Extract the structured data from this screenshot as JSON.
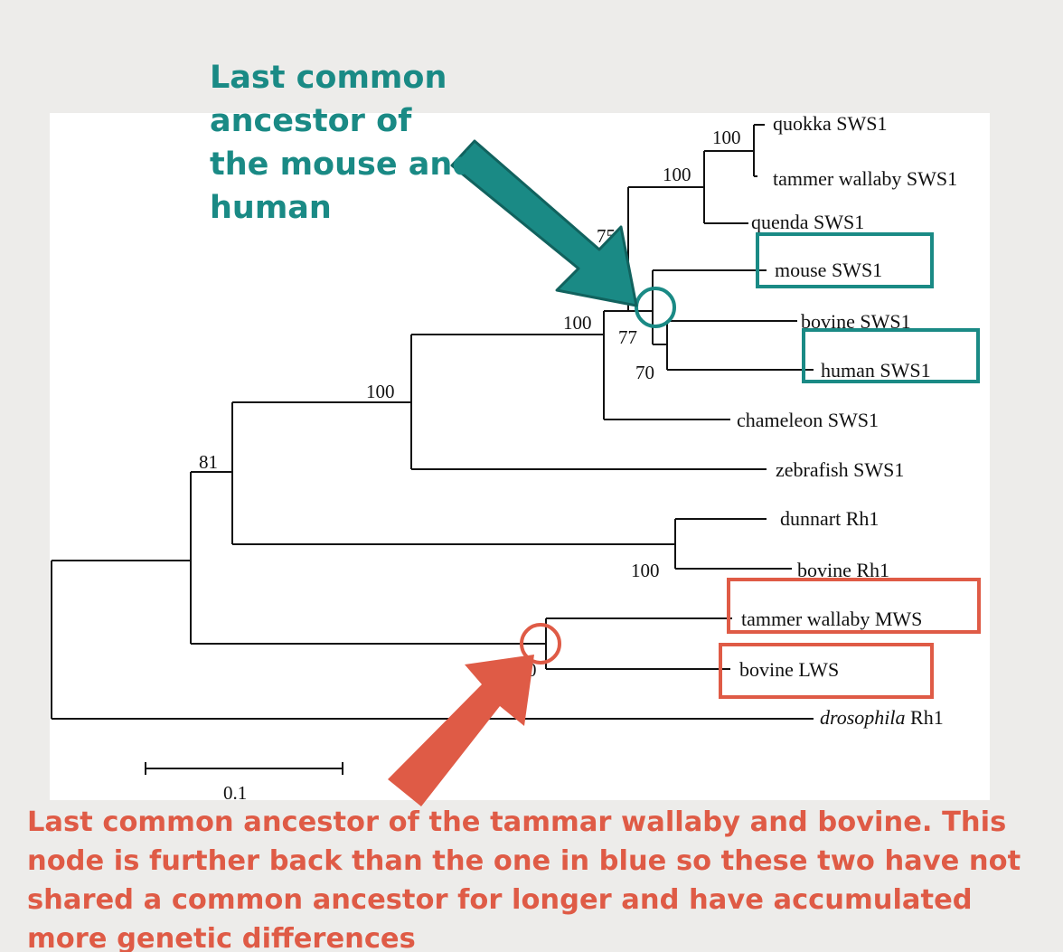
{
  "annotations": {
    "top": "Last common ancestor of the mouse and human",
    "bottom": "Last common ancestor of the tammar wallaby and bovine. This node is further back than the one in blue so these two have not shared a common ancestor for longer and have accumulated more genetic differences"
  },
  "tree": {
    "taxa": [
      {
        "name": "quokka SWS1"
      },
      {
        "name": "tammer wallaby SWS1"
      },
      {
        "name": "quenda SWS1"
      },
      {
        "name": "mouse SWS1"
      },
      {
        "name": "bovine SWS1"
      },
      {
        "name": "human SWS1"
      },
      {
        "name": "chameleon SWS1"
      },
      {
        "name": "zebrafish SWS1"
      },
      {
        "name": "dunnart Rh1"
      },
      {
        "name": "bovine Rh1"
      },
      {
        "name": "tammer wallaby MWS"
      },
      {
        "name": "bovine LWS"
      },
      {
        "name": "drosophila",
        "name_italic": true,
        "suffix": " Rh1"
      }
    ],
    "bootstrap": [
      "100",
      "100",
      "75",
      "100",
      "77",
      "70",
      "100",
      "81",
      "100",
      "0"
    ],
    "scale_label": "0.1"
  },
  "colors": {
    "teal": "#1a8a85",
    "red": "#df5b46",
    "line": "#111111"
  }
}
